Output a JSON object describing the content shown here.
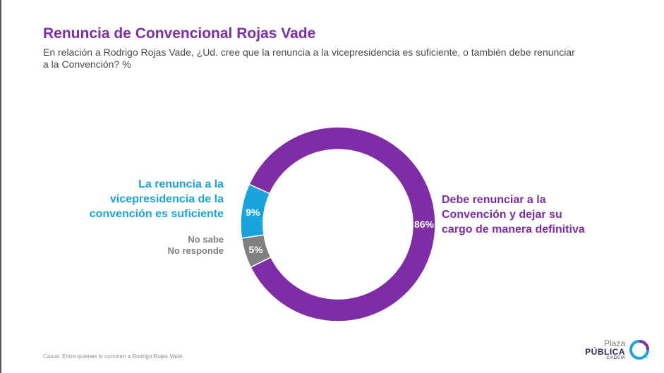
{
  "header": {
    "title": "Renuncia de Convencional Rojas Vade",
    "subtitle": "En relación a Rodrigo Rojas Vade, ¿Ud. cree que la renuncia a la vicepresidencia es suficiente, o también debe renunciar a la Convención? %"
  },
  "footnote": "Casos: Entre quienes lo conocen a Rodrigo Rojas Vade.",
  "logo": {
    "line1": "Plaza",
    "line2": "PÚBLICA",
    "line3": "CADEM"
  },
  "colors": {
    "purple": "#7f2ca7",
    "blue": "#1aa4de",
    "gray": "#808080",
    "title": "#7d2ea8"
  },
  "chart_data": {
    "type": "pie",
    "donut": true,
    "title": "Renuncia de Convencional Rojas Vade",
    "categories": [
      "Debe renunciar a la Convención y dejar su cargo de manera definitiva",
      "No sabe No responde",
      "La renuncia a la vicepresidencia de la convención es suficiente"
    ],
    "values": [
      86,
      5,
      9
    ],
    "value_labels": [
      "86%",
      "5%",
      "9%"
    ],
    "colors": [
      "#7f2ca7",
      "#808080",
      "#1aa4de"
    ]
  },
  "labels": {
    "purple_lines": [
      "Debe renunciar a la",
      "Convención y dejar su",
      "cargo de manera definitiva"
    ],
    "blue_lines": [
      "La renuncia a la",
      "vicepresidencia de la",
      "convención es suficiente"
    ],
    "gray_lines": [
      "No sabe",
      "No responde"
    ]
  }
}
